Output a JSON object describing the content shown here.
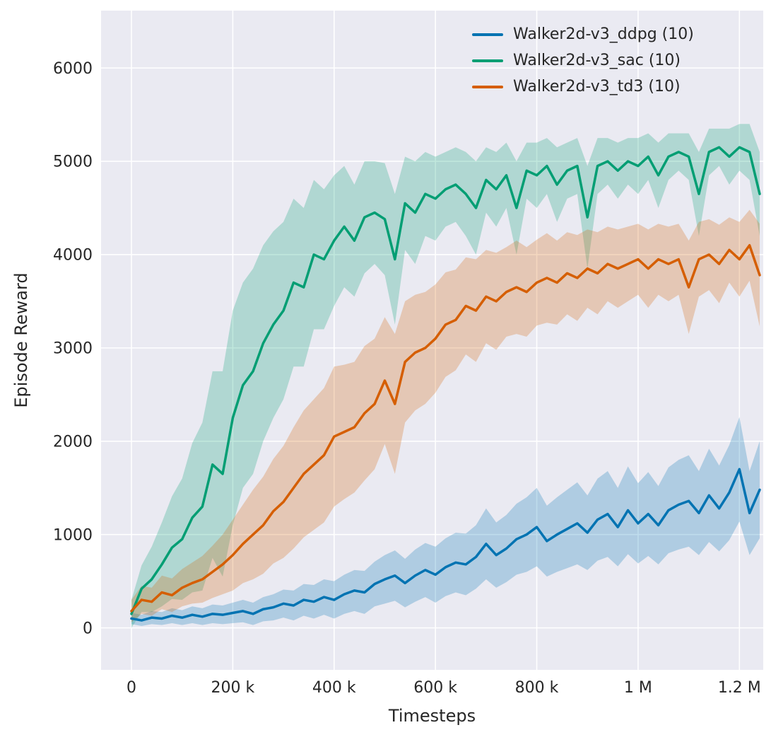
{
  "figure": {
    "background": "#ffffff",
    "axes_background": "#eaeaf2",
    "grid_color": "#ffffff",
    "text_color": "#262626"
  },
  "chart_data": {
    "type": "line",
    "title": "",
    "xlabel": "Timesteps",
    "ylabel": "Episode Reward",
    "xlim": [
      -60000,
      1247000
    ],
    "ylim": [
      -450,
      6615
    ],
    "grid": true,
    "legend_position": "top-right",
    "x_scale": 1000,
    "x_ticks": [
      {
        "v": 0,
        "label": "0"
      },
      {
        "v": 200000,
        "label": "200 k"
      },
      {
        "v": 400000,
        "label": "400 k"
      },
      {
        "v": 600000,
        "label": "600 k"
      },
      {
        "v": 800000,
        "label": "800 k"
      },
      {
        "v": 1000000,
        "label": "1 M"
      },
      {
        "v": 1200000,
        "label": "1.2 M"
      }
    ],
    "y_ticks": [
      {
        "v": 0,
        "label": "0"
      },
      {
        "v": 1000,
        "label": "1000"
      },
      {
        "v": 2000,
        "label": "2000"
      },
      {
        "v": 3000,
        "label": "3000"
      },
      {
        "v": 4000,
        "label": "4000"
      },
      {
        "v": 5000,
        "label": "5000"
      },
      {
        "v": 6000,
        "label": "6000"
      }
    ],
    "x": [
      0,
      20,
      40,
      60,
      80,
      100,
      120,
      140,
      160,
      180,
      200,
      220,
      240,
      260,
      280,
      300,
      320,
      340,
      360,
      380,
      400,
      420,
      440,
      460,
      480,
      500,
      520,
      540,
      560,
      580,
      600,
      620,
      640,
      660,
      680,
      700,
      720,
      740,
      760,
      780,
      800,
      820,
      840,
      860,
      880,
      900,
      920,
      940,
      960,
      980,
      1000,
      1020,
      1040,
      1060,
      1080,
      1100,
      1120,
      1140,
      1160,
      1180,
      1200,
      1220,
      1240
    ],
    "series": [
      {
        "name": "Walker2d-v3_ddpg (10)",
        "color": "#0173b2",
        "mean": [
          100,
          80,
          110,
          100,
          130,
          110,
          140,
          120,
          150,
          140,
          160,
          180,
          150,
          200,
          220,
          260,
          240,
          300,
          280,
          330,
          300,
          360,
          400,
          380,
          470,
          520,
          560,
          480,
          560,
          620,
          570,
          650,
          700,
          680,
          760,
          900,
          780,
          850,
          950,
          1000,
          1080,
          930,
          1000,
          1060,
          1120,
          1020,
          1160,
          1220,
          1080,
          1260,
          1120,
          1220,
          1100,
          1260,
          1320,
          1360,
          1230,
          1420,
          1280,
          1450,
          1700,
          1230,
          1480
        ],
        "spread": [
          60,
          60,
          70,
          70,
          80,
          80,
          90,
          90,
          100,
          100,
          110,
          120,
          120,
          130,
          140,
          150,
          160,
          170,
          180,
          190,
          200,
          210,
          220,
          230,
          240,
          260,
          270,
          260,
          280,
          290,
          300,
          310,
          320,
          330,
          340,
          380,
          350,
          360,
          380,
          400,
          420,
          380,
          400,
          420,
          440,
          400,
          440,
          460,
          420,
          470,
          430,
          450,
          420,
          460,
          480,
          490,
          450,
          500,
          460,
          510,
          560,
          450,
          520
        ]
      },
      {
        "name": "Walker2d-v3_sac (10)",
        "color": "#029e73",
        "mean": [
          150,
          420,
          520,
          680,
          860,
          950,
          1180,
          1300,
          1750,
          1650,
          2250,
          2600,
          2750,
          3050,
          3250,
          3400,
          3700,
          3650,
          4000,
          3950,
          4150,
          4300,
          4150,
          4400,
          4450,
          4380,
          3950,
          4550,
          4450,
          4650,
          4600,
          4700,
          4750,
          4650,
          4500,
          4800,
          4700,
          4850,
          4500,
          4900,
          4850,
          4950,
          4750,
          4900,
          4950,
          4400,
          4950,
          5000,
          4900,
          5000,
          4950,
          5050,
          4850,
          5050,
          5100,
          5050,
          4650,
          5100,
          5150,
          5050,
          5150,
          5100,
          4650
        ],
        "spread": [
          150,
          250,
          350,
          450,
          550,
          650,
          800,
          900,
          1000,
          1100,
          1150,
          1100,
          1100,
          1050,
          1000,
          950,
          900,
          850,
          800,
          750,
          700,
          650,
          600,
          600,
          550,
          600,
          700,
          500,
          550,
          450,
          450,
          400,
          400,
          450,
          500,
          350,
          400,
          350,
          500,
          300,
          350,
          300,
          400,
          300,
          300,
          550,
          300,
          250,
          300,
          250,
          300,
          250,
          350,
          250,
          200,
          250,
          450,
          250,
          200,
          300,
          250,
          300,
          450
        ]
      },
      {
        "name": "Walker2d-v3_td3 (10)",
        "color": "#d55e00",
        "mean": [
          180,
          300,
          280,
          380,
          350,
          430,
          480,
          520,
          600,
          680,
          780,
          900,
          1000,
          1100,
          1250,
          1350,
          1500,
          1650,
          1750,
          1850,
          2050,
          2100,
          2150,
          2300,
          2400,
          2650,
          2400,
          2850,
          2950,
          3000,
          3100,
          3250,
          3300,
          3450,
          3400,
          3550,
          3500,
          3600,
          3650,
          3600,
          3700,
          3750,
          3700,
          3800,
          3750,
          3850,
          3800,
          3900,
          3850,
          3900,
          3950,
          3850,
          3950,
          3900,
          3950,
          3650,
          3950,
          4000,
          3900,
          4050,
          3950,
          4100,
          3780
        ],
        "spread": [
          120,
          150,
          150,
          180,
          180,
          200,
          220,
          250,
          280,
          320,
          380,
          420,
          480,
          520,
          560,
          600,
          650,
          680,
          700,
          720,
          750,
          720,
          700,
          720,
          700,
          680,
          750,
          650,
          620,
          600,
          580,
          560,
          540,
          520,
          550,
          500,
          520,
          480,
          500,
          480,
          460,
          480,
          450,
          440,
          460,
          420,
          440,
          400,
          420,
          400,
          380,
          420,
          380,
          400,
          380,
          500,
          400,
          380,
          420,
          350,
          400,
          380,
          550
        ]
      }
    ]
  }
}
